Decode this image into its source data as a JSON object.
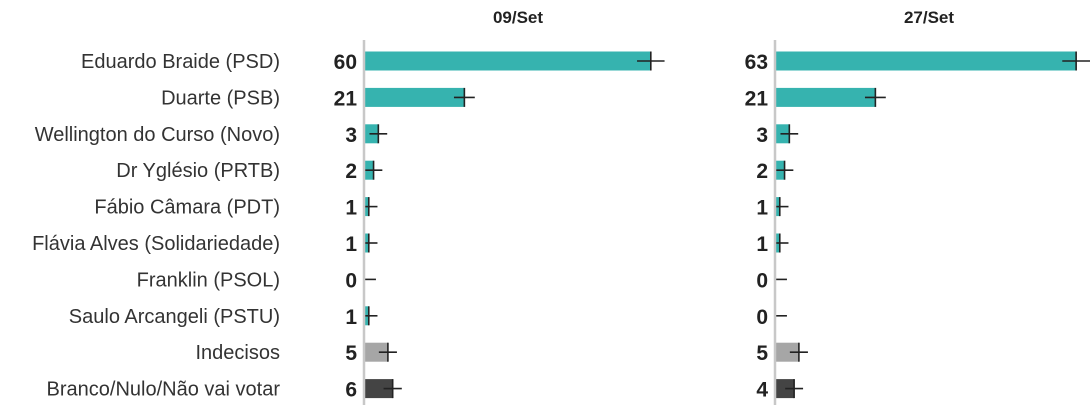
{
  "chart_data": {
    "type": "bar",
    "orientation": "horizontal",
    "categories": [
      "Eduardo Braide (PSD)",
      "Duarte (PSB)",
      "Wellington do Curso (Novo)",
      "Dr Yglésio (PRTB)",
      "Fábio Câmara (PDT)",
      "Flávia Alves (Solidariedade)",
      "Franklin (PSOL)",
      "Saulo Arcangeli (PSTU)",
      "Indecisos",
      "Branco/Nulo/Não vai votar"
    ],
    "category_kind": [
      "candidate",
      "candidate",
      "candidate",
      "candidate",
      "candidate",
      "candidate",
      "candidate",
      "candidate",
      "undecided",
      "blank"
    ],
    "series": [
      {
        "panel_title": "09/Set",
        "values": [
          60,
          21,
          3,
          2,
          1,
          1,
          0,
          1,
          5,
          6
        ]
      },
      {
        "panel_title": "27/Set",
        "values": [
          63,
          21,
          3,
          2,
          1,
          1,
          0,
          0,
          5,
          4
        ]
      }
    ],
    "error_bars": true,
    "xlim": [
      0,
      63
    ],
    "colors": {
      "candidate": "#36b3af",
      "undecided": "#a6a6a6",
      "blank": "#444444",
      "error_bar": "#222222",
      "axis": "#c8c8c8"
    }
  }
}
